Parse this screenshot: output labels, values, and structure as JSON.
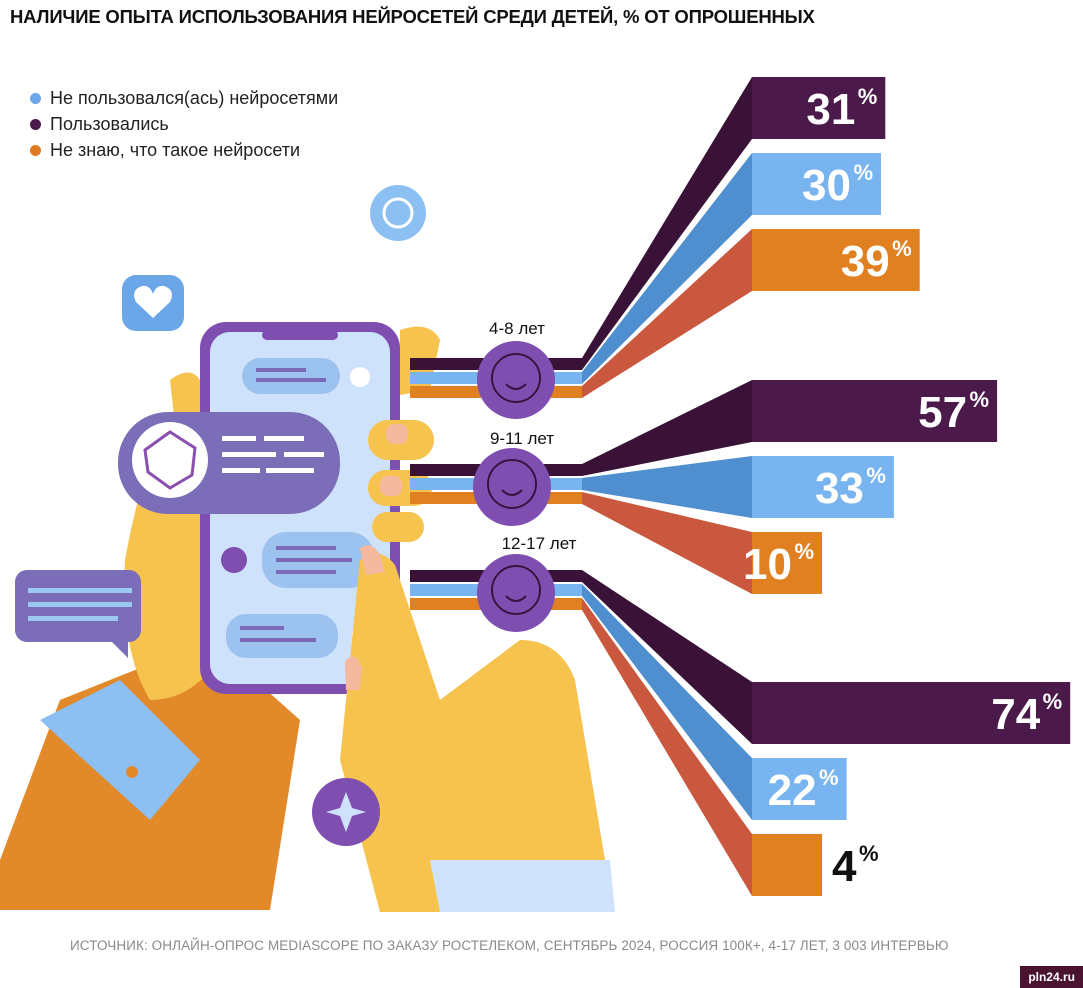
{
  "title": "НАЛИЧИЕ ОПЫТА ИСПОЛЬЗОВАНИЯ НЕЙРОСЕТЕЙ СРЕДИ ДЕТЕЙ, % ОТ ОПРОШЕННЫХ",
  "legend": [
    {
      "label": "Не пользовался(ась) нейросетями",
      "color": "#6aa6e8"
    },
    {
      "label": "Пользовались",
      "color": "#4b1a4a"
    },
    {
      "label": "Не знаю, что такое нейросети",
      "color": "#e07a20"
    }
  ],
  "source": "ИСТОЧНИК: ОНЛАЙН-ОПРОС MEDIASCOPE ПО ЗАКАЗУ РОСТЕЛЕКОМ, СЕНТЯБРЬ 2024, РОССИЯ 100К+, 4-17 ЛЕТ, 3 003 ИНТЕРВЬЮ",
  "watermark": "pln24.ru",
  "chart_data": {
    "type": "bar",
    "categories": [
      "4-8 лет",
      "9-11 лет",
      "12-17 лет"
    ],
    "series": [
      {
        "name": "Пользовались",
        "values": [
          31,
          57,
          74
        ],
        "color": "#4b1a4a"
      },
      {
        "name": "Не пользовался(ась) нейросетями",
        "values": [
          30,
          33,
          22
        ],
        "color": "#78b4ef"
      },
      {
        "name": "Не знаю, что такое нейросети",
        "values": [
          39,
          10,
          4
        ],
        "color": "#e08020"
      }
    ],
    "value_suffix": "%",
    "legend_position": "top-left"
  }
}
